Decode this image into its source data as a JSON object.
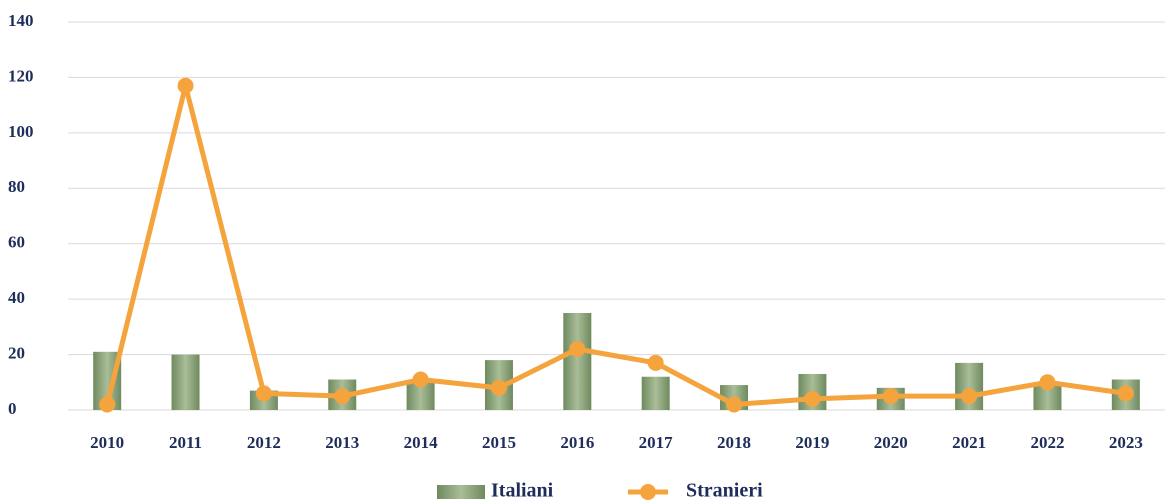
{
  "chart_data": {
    "type": "combo",
    "categories": [
      "2010",
      "2011",
      "2012",
      "2013",
      "2014",
      "2015",
      "2016",
      "2017",
      "2018",
      "2019",
      "2020",
      "2021",
      "2022",
      "2023"
    ],
    "series": [
      {
        "name": "Italiani",
        "type": "bar",
        "color": "#8ea67c",
        "values": [
          21,
          20,
          7,
          11,
          10,
          18,
          35,
          12,
          9,
          13,
          8,
          17,
          10,
          11
        ]
      },
      {
        "name": "Stranieri",
        "type": "line",
        "color": "#f5a33c",
        "values": [
          2,
          117,
          6,
          5,
          11,
          8,
          22,
          17,
          2,
          4,
          5,
          5,
          10,
          6
        ]
      }
    ],
    "ylim": [
      0,
      140
    ],
    "yticks": [
      0,
      20,
      40,
      60,
      80,
      100,
      120,
      140
    ],
    "grid": true,
    "legend": "bottom"
  }
}
